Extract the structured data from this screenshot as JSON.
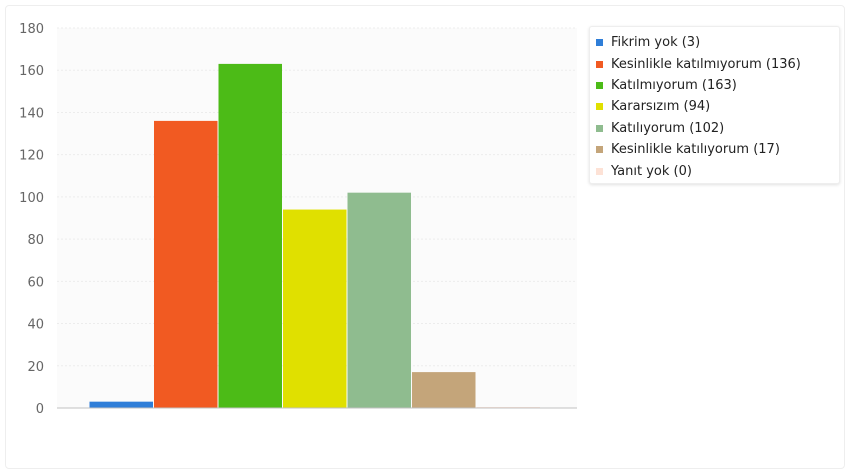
{
  "chart_data": {
    "type": "bar",
    "title": "",
    "xlabel": "",
    "ylabel": "",
    "ylim": [
      0,
      180
    ],
    "yticks": [
      0,
      20,
      40,
      60,
      80,
      100,
      120,
      140,
      160,
      180
    ],
    "grid": true,
    "legend_position": "top-right",
    "series": [
      {
        "name": "Fikrim yok (3)",
        "value": 3,
        "color": "#2f7ed8"
      },
      {
        "name": "Kesinlikle katılmıyorum (136)",
        "value": 136,
        "color": "#f15a22"
      },
      {
        "name": "Katılmıyorum (163)",
        "value": 163,
        "color": "#4cbb17"
      },
      {
        "name": "Kararsızım (94)",
        "value": 94,
        "color": "#e0e000"
      },
      {
        "name": "Katılıyorum (102)",
        "value": 102,
        "color": "#8fbc8f"
      },
      {
        "name": "Kesinlikle katılıyorum (17)",
        "value": 17,
        "color": "#c4a57a"
      },
      {
        "name": "Yanıt yok (0)",
        "value": 0,
        "color": "#fde2d6"
      }
    ]
  }
}
